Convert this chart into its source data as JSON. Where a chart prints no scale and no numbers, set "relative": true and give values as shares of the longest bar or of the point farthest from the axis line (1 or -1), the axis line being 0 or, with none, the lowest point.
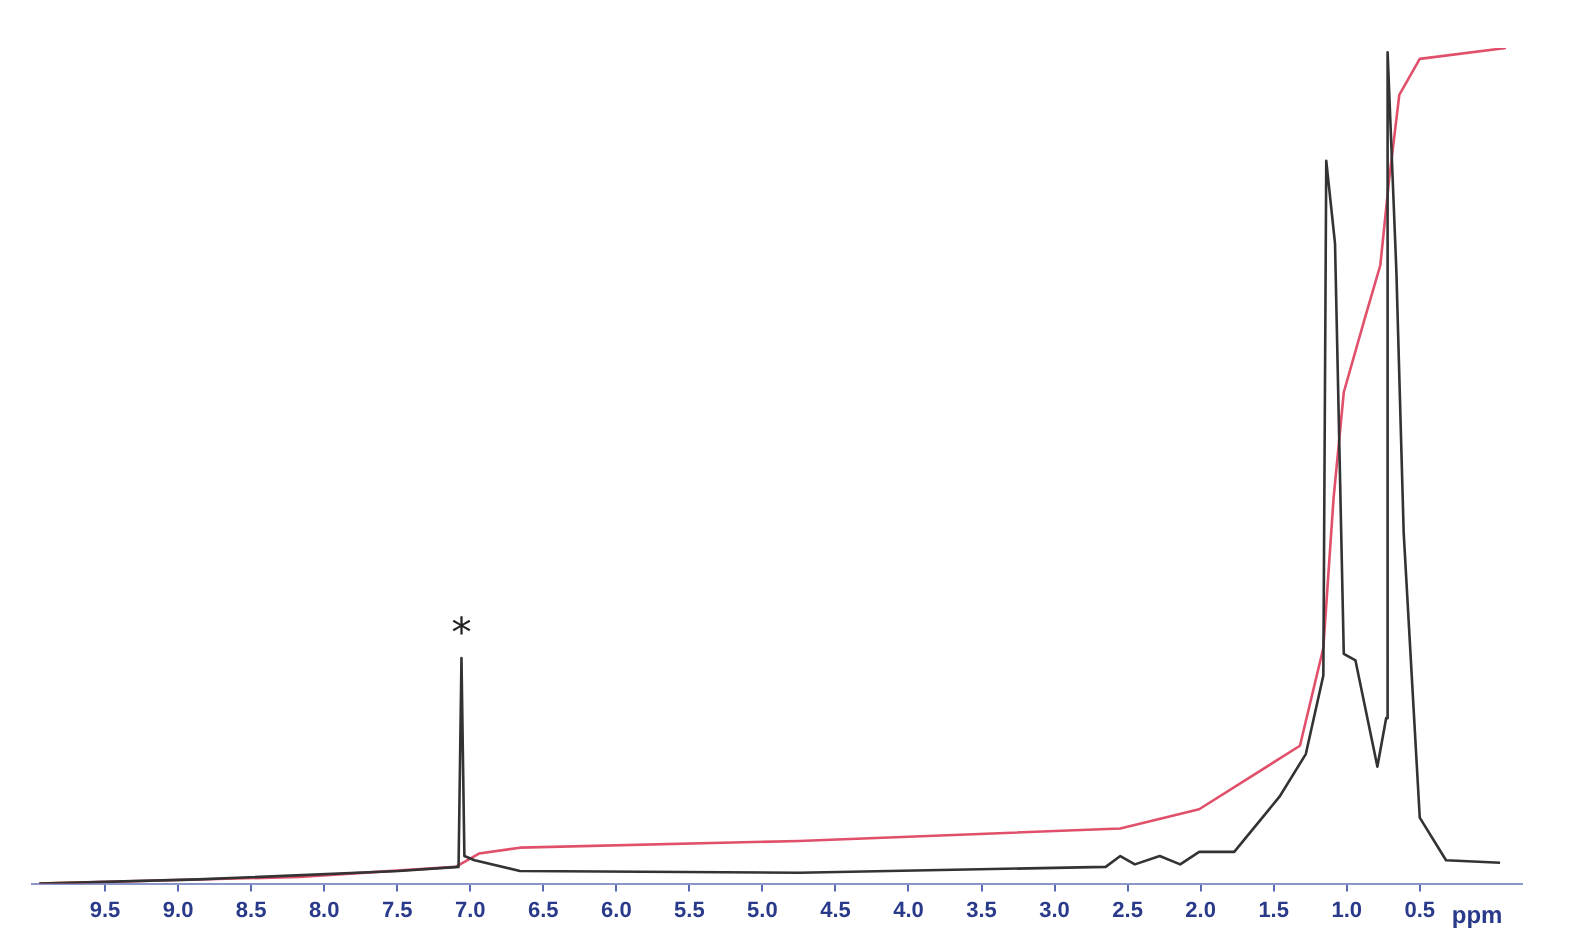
{
  "chart_data": {
    "type": "line",
    "relative": true,
    "xlabel": "ppm",
    "xlim": [
      10,
      -0.2
    ],
    "xticks": [
      {
        "value": 9.5,
        "label": "9.5"
      },
      {
        "value": 9,
        "label": "9.0"
      },
      {
        "value": 8.5,
        "label": "8.5"
      },
      {
        "value": 8,
        "label": "8.0"
      },
      {
        "value": 7.5,
        "label": "7.5"
      },
      {
        "value": 7,
        "label": "7.0"
      },
      {
        "value": 6.5,
        "label": "6.5"
      },
      {
        "value": 6,
        "label": "6.0"
      },
      {
        "value": 5.5,
        "label": "5.5"
      },
      {
        "value": 5,
        "label": "5.0"
      },
      {
        "value": 4.5,
        "label": "4.5"
      },
      {
        "value": 4,
        "label": "4.0"
      },
      {
        "value": 3.5,
        "label": "3.5"
      },
      {
        "value": 3,
        "label": "3.0"
      },
      {
        "value": 2.5,
        "label": "2.5"
      },
      {
        "value": 2,
        "label": "2.0"
      },
      {
        "value": 1.5,
        "label": "1.5"
      },
      {
        "value": 1,
        "label": "1.0"
      },
      {
        "value": 0.5,
        "label": "0.5"
      }
    ],
    "series": [
      {
        "color": "#333333",
        "x": [
          9.95,
          8.86,
          7.49,
          7.08,
          7.06,
          7.04,
          6.97,
          6.66,
          4.75,
          2.65,
          2.55,
          2.45,
          2.28,
          2.14,
          2.01,
          1.77,
          1.46,
          1.28,
          1.16,
          1.14,
          1.08,
          1.02,
          0.94,
          0.79,
          0.73,
          0.72,
          0.66,
          0.61,
          0.5,
          0.32,
          -0.05
        ],
        "values": [
          0,
          0.005,
          0.015,
          0.02,
          0.27,
          0.033,
          0.028,
          0.015,
          0.013,
          0.02,
          0.033,
          0.023,
          0.033,
          0.023,
          0.038,
          0.038,
          0.104,
          0.155,
          0.249,
          0.865,
          0.766,
          0.275,
          0.267,
          0.14,
          0.198,
          0.995,
          0.733,
          0.42,
          0.079,
          0.028,
          0.025
        ]
      },
      {
        "color": "#e0506a",
        "x": [
          9.95,
          8.17,
          7.1,
          6.94,
          6.66,
          4.75,
          2.55,
          2.01,
          1.32,
          1.16,
          1.09,
          1.02,
          0.88,
          0.77,
          0.71,
          0.64,
          0.5,
          -0.09
        ],
        "values": [
          0,
          0.008,
          0.02,
          0.036,
          0.043,
          0.051,
          0.066,
          0.089,
          0.165,
          0.282,
          0.461,
          0.588,
          0.674,
          0.74,
          0.842,
          0.944,
          0.987,
          1
        ]
      }
    ],
    "annotations": [
      {
        "text": "*",
        "x": 7.06,
        "y": 0.27
      }
    ],
    "grid": false,
    "legend": false,
    "marker": "none",
    "line_style": "solid"
  }
}
